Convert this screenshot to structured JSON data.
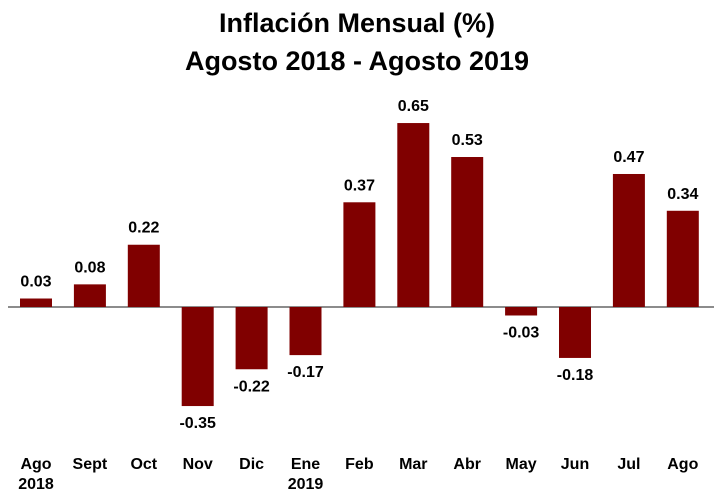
{
  "chart_data": {
    "type": "bar",
    "title": "Inflación Mensual (%)\nAgosto 2018 - Agosto 2019",
    "categories": [
      "Ago\n2018",
      "Sept",
      "Oct",
      "Nov",
      "Dic",
      "Ene\n2019",
      "Feb",
      "Mar",
      "Abr",
      "May",
      "Jun",
      "Jul",
      "Ago"
    ],
    "values": [
      0.03,
      0.08,
      0.22,
      -0.35,
      -0.22,
      -0.17,
      0.37,
      0.65,
      0.53,
      -0.03,
      -0.18,
      0.47,
      0.34
    ],
    "color": "#800000"
  }
}
